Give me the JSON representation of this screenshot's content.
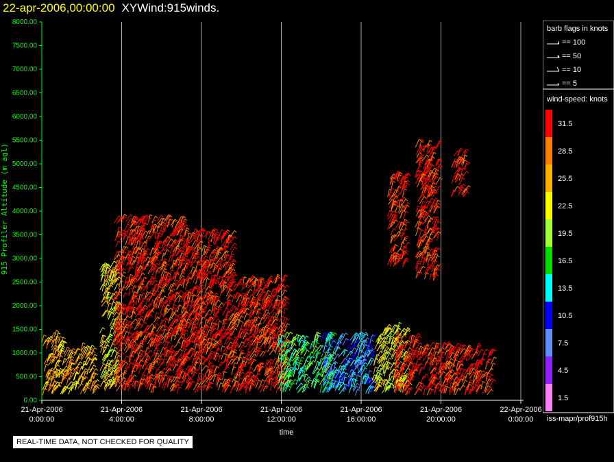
{
  "header": {
    "date_label": "22-apr-2006,00:00:00",
    "product_label": "XYWind:915winds."
  },
  "notice": "REAL-TIME DATA, NOT CHECKED FOR QUALITY",
  "footer_source": "iss-mapr/prof915h",
  "colors": {
    "background": "#000000",
    "title_date": "#ffff00",
    "axis_y": "#00ff00",
    "axis_x": "#ffffff",
    "gridline": "#aaaaaa"
  },
  "barb_legend": {
    "title": "barb flags in knots",
    "items": [
      {
        "label": "== 100",
        "kind": "pennant"
      },
      {
        "label": "== 50",
        "kind": "pennant-small"
      },
      {
        "label": "== 10",
        "kind": "full-barb"
      },
      {
        "label": "== 5",
        "kind": "half-barb"
      }
    ]
  },
  "chart_data": {
    "type": "scatter",
    "subtype": "wind-barb time-height",
    "xlabel": "time",
    "ylabel": "915 Profiler Altitude (m agl)",
    "x_ticks": [
      [
        "21-Apr-2006",
        "0:00:00"
      ],
      [
        "21-Apr-2006",
        "4:00:00"
      ],
      [
        "21-Apr-2006",
        "8:00:00"
      ],
      [
        "21-Apr-2006",
        "12:00:00"
      ],
      [
        "21-Apr-2006",
        "16:00:00"
      ],
      [
        "21-Apr-2006",
        "20:00:00"
      ],
      [
        "22-Apr-2006",
        "0:00:00"
      ]
    ],
    "x_range_hours": [
      0,
      24
    ],
    "y_ticks": [
      "0.00",
      "500.00",
      "1000.00",
      "1500.00",
      "2000.00",
      "2500.00",
      "3000.00",
      "3500.00",
      "4000.00",
      "4500.00",
      "5000.00",
      "5500.00",
      "6000.00",
      "6500.00",
      "7000.00",
      "7500.00",
      "8000.00"
    ],
    "ylim": [
      0,
      8000
    ],
    "grid": "vertical lines at x ticks",
    "colorbar": {
      "title": "wind-speed: knots",
      "levels": [
        {
          "label": "31.5",
          "color": "#ff0000"
        },
        {
          "label": "28.5",
          "color": "#ff8000"
        },
        {
          "label": "25.5",
          "color": "#ffb000"
        },
        {
          "label": "22.5",
          "color": "#ffff00"
        },
        {
          "label": "19.5",
          "color": "#a0ff30"
        },
        {
          "label": "16.5",
          "color": "#00e000"
        },
        {
          "label": "13.5",
          "color": "#00ffff"
        },
        {
          "label": "10.5",
          "color": "#0000ff"
        },
        {
          "label": "7.5",
          "color": "#6090ff"
        },
        {
          "label": "4.5",
          "color": "#9020ff"
        },
        {
          "label": "1.5",
          "color": "#ff80ff"
        }
      ]
    },
    "regions": [
      {
        "t0": 0.0,
        "t1": 1.0,
        "z0": 100,
        "z1": 1350,
        "speed": 25.5
      },
      {
        "t0": 1.0,
        "t1": 2.6,
        "z0": 100,
        "z1": 1050,
        "speed": 25.5
      },
      {
        "t0": 2.9,
        "t1": 3.7,
        "z0": 150,
        "z1": 2800,
        "speed": 22.5
      },
      {
        "t0": 3.6,
        "t1": 7.2,
        "z0": 150,
        "z1": 3800,
        "speed": 31.5
      },
      {
        "t0": 7.2,
        "t1": 9.5,
        "z0": 150,
        "z1": 3500,
        "speed": 31.5
      },
      {
        "t0": 9.5,
        "t1": 12.2,
        "z0": 150,
        "z1": 2500,
        "speed": 31.5
      },
      {
        "t0": 11.8,
        "t1": 14.5,
        "z0": 150,
        "z1": 1300,
        "speed": 16.5
      },
      {
        "t0": 14.0,
        "t1": 16.5,
        "z0": 100,
        "z1": 1300,
        "speed": 10.5
      },
      {
        "t0": 16.5,
        "t1": 18.2,
        "z0": 150,
        "z1": 1500,
        "speed": 22.5
      },
      {
        "t0": 17.6,
        "t1": 19.0,
        "z0": 100,
        "z1": 1300,
        "speed": 31.5
      },
      {
        "t0": 19.0,
        "t1": 22.5,
        "z0": 100,
        "z1": 1100,
        "speed": 31.5
      },
      {
        "t0": 17.3,
        "t1": 18.2,
        "z0": 2800,
        "z1": 4700,
        "speed": 31.5
      },
      {
        "t0": 18.7,
        "t1": 19.8,
        "z0": 2500,
        "z1": 5400,
        "speed": 31.5
      },
      {
        "t0": 20.5,
        "t1": 21.2,
        "z0": 4300,
        "z1": 5200,
        "speed": 31.5
      }
    ]
  }
}
